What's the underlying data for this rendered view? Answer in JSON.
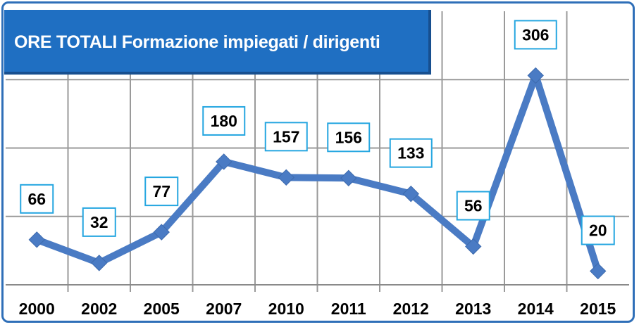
{
  "chart_data": {
    "type": "line",
    "title": "ORE TOTALI Formazione impiegati / dirigenti",
    "categories": [
      "2000",
      "2002",
      "2005",
      "2007",
      "2010",
      "2011",
      "2012",
      "2013",
      "2014",
      "2015"
    ],
    "series": [
      {
        "values": [
          66,
          32,
          77,
          180,
          157,
          156,
          133,
          56,
          306,
          20
        ]
      }
    ],
    "ylim": [
      0,
      400
    ],
    "grid": true,
    "data_labels": true,
    "line_color": "#4a7bc4",
    "label_border_color": "#25a6e0",
    "title_bg_color": "#1f6fc2"
  }
}
